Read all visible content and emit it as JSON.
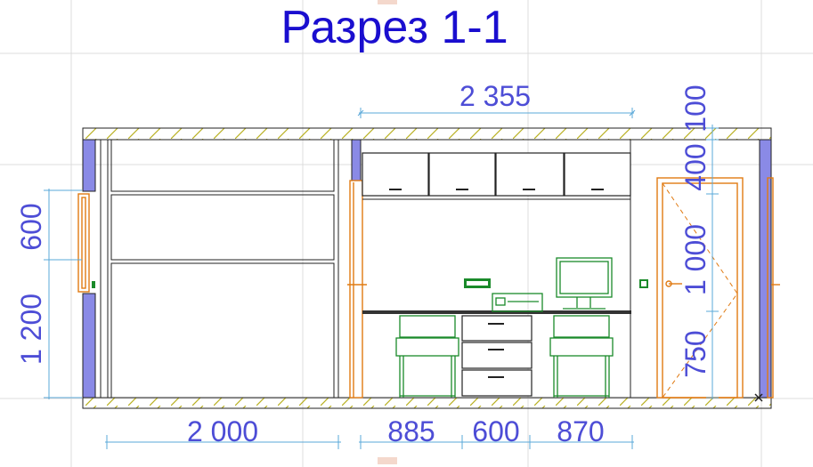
{
  "title": "Разрез 1-1",
  "dimensions": {
    "top_width": "2 355",
    "bottom_left": "2 000",
    "bottom_seg1": "885",
    "bottom_seg2": "600",
    "bottom_seg3": "870",
    "left_upper": "600",
    "left_lower": "1 200",
    "right_top": "100",
    "right_400": "400",
    "right_1000": "1 000",
    "right_750": "750"
  },
  "colors": {
    "title": "#1a0ecf",
    "dimension_text": "#4d4dd6",
    "dimension_line": "#5aa8d8",
    "wall_section": "#8a8ae6",
    "slab_hatch": "#b8b020",
    "door_frame": "#e07a12",
    "furniture": "#1a8a2a"
  },
  "icons": {
    "exit_sign": "exit-sign-icon",
    "switch": "light-switch-icon",
    "monitor": "computer-monitor-icon",
    "printer": "printer-icon"
  }
}
